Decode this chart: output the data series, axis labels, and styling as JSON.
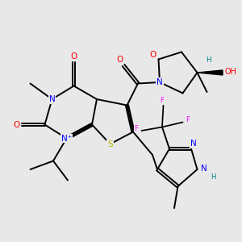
{
  "background_color": "#e8e8e8",
  "atom_colors": {
    "N": "#0000ff",
    "O": "#ff0000",
    "S": "#b8b800",
    "F": "#ff00ff",
    "H": "#008080"
  },
  "figsize": [
    3.0,
    3.0
  ],
  "dpi": 100,
  "lw": 1.4,
  "fs": 7.5,
  "fs_small": 6.2
}
